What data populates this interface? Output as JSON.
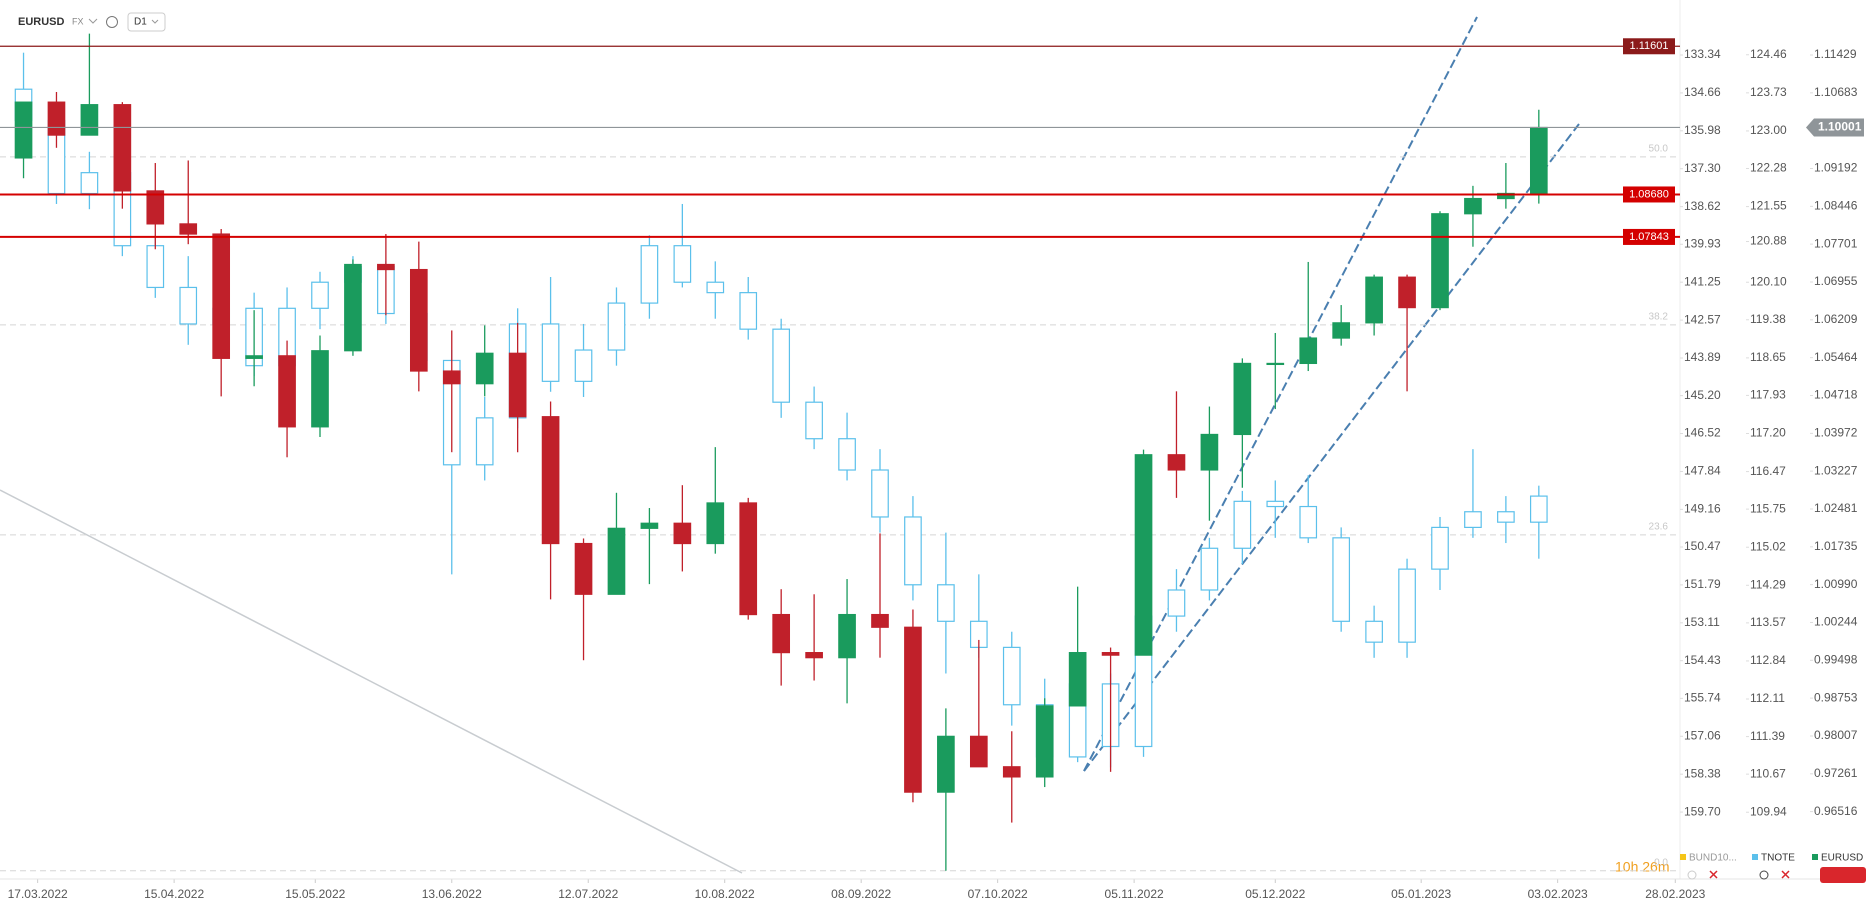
{
  "chart_data": {
    "type": "candlestick",
    "header": {
      "symbol": "EURUSD",
      "market": "FX",
      "interval": "D1"
    },
    "timer": "10h 26m",
    "dates": [
      "2022-03-14",
      "2022-03-21",
      "2022-03-28",
      "2022-04-04",
      "2022-04-11",
      "2022-04-18",
      "2022-04-25",
      "2022-05-02",
      "2022-05-09",
      "2022-05-16",
      "2022-05-23",
      "2022-05-30",
      "2022-06-06",
      "2022-06-13",
      "2022-06-20",
      "2022-06-27",
      "2022-07-04",
      "2022-07-11",
      "2022-07-18",
      "2022-07-25",
      "2022-08-01",
      "2022-08-08",
      "2022-08-15",
      "2022-08-22",
      "2022-08-29",
      "2022-09-05",
      "2022-09-12",
      "2022-09-19",
      "2022-09-26",
      "2022-10-03",
      "2022-10-10",
      "2022-10-17",
      "2022-10-24",
      "2022-10-31",
      "2022-11-07",
      "2022-11-14",
      "2022-11-21",
      "2022-11-28",
      "2022-12-05",
      "2022-12-12",
      "2022-12-19",
      "2022-12-26",
      "2023-01-02",
      "2023-01-09",
      "2023-01-16",
      "2023-01-23",
      "2023-01-30"
    ],
    "series": [
      {
        "name": "BUND10...",
        "color": "#f5c518",
        "axis": "y3"
      },
      {
        "name": "TNOTE",
        "color": "#5bc0eb",
        "axis": "y2",
        "open": [
          123.8,
          123.2,
          121.8,
          122.2,
          120.8,
          120.0,
          119.3,
          119.6,
          118.5,
          119.6,
          120.1,
          120.4,
          119.5,
          118.6,
          116.6,
          117.5,
          119.3,
          118.2,
          118.8,
          119.7,
          120.8,
          120.1,
          119.9,
          119.2,
          117.8,
          117.1,
          116.5,
          115.6,
          114.3,
          113.6,
          113.1,
          112.0,
          111.0,
          112.4,
          111.2,
          113.7,
          114.2,
          115.0,
          115.9,
          115.8,
          115.2,
          113.6,
          113.2,
          114.6,
          115.4,
          115.7,
          115.5
        ],
        "high": [
          124.5,
          123.4,
          122.6,
          122.3,
          121.0,
          120.6,
          120.0,
          119.9,
          120.0,
          120.3,
          120.6,
          120.5,
          119.8,
          118.8,
          117.9,
          119.6,
          120.2,
          119.3,
          120.0,
          121.0,
          121.6,
          120.5,
          120.2,
          119.4,
          118.1,
          117.6,
          116.9,
          116.0,
          115.3,
          114.5,
          113.4,
          112.5,
          112.8,
          112.6,
          114.0,
          114.6,
          115.2,
          116.1,
          116.3,
          116.4,
          115.4,
          113.9,
          114.8,
          115.6,
          116.9,
          116.0,
          116.2
        ],
        "low": [
          122.9,
          121.6,
          121.5,
          120.6,
          119.8,
          118.9,
          118.9,
          118.3,
          118.4,
          119.2,
          119.9,
          119.3,
          118.4,
          114.5,
          116.3,
          117.3,
          118.0,
          117.9,
          118.5,
          119.4,
          120.0,
          119.4,
          119.0,
          117.5,
          116.9,
          116.3,
          115.3,
          114.0,
          112.6,
          112.9,
          111.6,
          110.6,
          110.9,
          110.8,
          111.0,
          113.4,
          114.0,
          114.7,
          115.2,
          115.1,
          113.4,
          112.9,
          112.9,
          114.2,
          115.2,
          115.1,
          114.8
        ],
        "close": [
          123.2,
          121.8,
          122.2,
          120.8,
          120.0,
          119.3,
          119.6,
          118.5,
          119.6,
          120.1,
          120.4,
          119.5,
          118.6,
          116.6,
          117.5,
          119.3,
          118.2,
          118.8,
          119.7,
          120.8,
          120.1,
          119.9,
          119.2,
          117.8,
          117.1,
          116.5,
          115.6,
          114.3,
          113.6,
          113.1,
          112.0,
          111.0,
          112.4,
          111.2,
          113.7,
          114.2,
          115.0,
          115.9,
          115.8,
          115.2,
          113.6,
          113.2,
          114.6,
          115.4,
          115.7,
          115.5,
          116.0
        ]
      },
      {
        "name": "EURUSD",
        "color": "#1a9b5d",
        "down_color": "#c0202a",
        "axis": "y",
        "open": [
          1.094,
          1.105,
          1.0985,
          1.1045,
          1.0875,
          1.081,
          1.079,
          1.0545,
          1.055,
          1.041,
          1.056,
          1.073,
          1.072,
          1.052,
          1.0495,
          1.0555,
          1.043,
          1.018,
          1.008,
          1.021,
          1.022,
          1.018,
          1.026,
          1.004,
          0.9965,
          0.9955,
          1.004,
          1.0015,
          0.969,
          0.98,
          0.974,
          0.972,
          0.986,
          0.9965,
          0.996,
          1.0355,
          1.0325,
          1.0395,
          1.0535,
          1.0535,
          1.0585,
          1.0615,
          1.0705,
          1.0645,
          1.083,
          1.086,
          1.087
        ],
        "high": [
          1.105,
          1.107,
          1.1185,
          1.105,
          1.093,
          1.0935,
          1.08,
          1.064,
          1.058,
          1.059,
          1.074,
          1.079,
          1.0775,
          1.06,
          1.061,
          1.0615,
          1.046,
          1.019,
          1.028,
          1.025,
          1.0295,
          1.037,
          1.027,
          1.009,
          1.008,
          1.011,
          1.02,
          1.005,
          0.9855,
          0.999,
          0.981,
          0.9875,
          1.0095,
          0.9975,
          1.0365,
          1.048,
          1.045,
          1.0545,
          1.0595,
          1.0735,
          1.065,
          1.071,
          1.071,
          1.0835,
          1.0885,
          1.093,
          1.1035
        ],
        "low": [
          1.09,
          1.096,
          1.099,
          1.084,
          1.076,
          1.077,
          1.047,
          1.049,
          1.035,
          1.039,
          1.055,
          1.063,
          1.048,
          1.036,
          1.047,
          1.036,
          1.007,
          0.995,
          1.008,
          1.01,
          1.0125,
          1.016,
          1.003,
          0.99,
          0.991,
          0.9865,
          0.9955,
          0.967,
          0.9535,
          0.974,
          0.963,
          0.97,
          0.986,
          0.973,
          0.996,
          1.027,
          1.0225,
          1.029,
          1.0445,
          1.052,
          1.057,
          1.059,
          1.048,
          1.064,
          1.0765,
          1.084,
          1.085
        ],
        "close": [
          1.105,
          1.0985,
          1.1045,
          1.0875,
          1.081,
          1.079,
          1.0545,
          1.055,
          1.041,
          1.056,
          1.073,
          1.072,
          1.052,
          1.0495,
          1.0555,
          1.043,
          1.018,
          1.008,
          1.021,
          1.022,
          1.018,
          1.026,
          1.004,
          0.9965,
          0.9955,
          1.004,
          1.0015,
          0.969,
          0.98,
          0.974,
          0.972,
          0.986,
          0.9965,
          0.996,
          1.0355,
          1.0325,
          1.0395,
          1.0535,
          1.0535,
          1.0585,
          1.0615,
          1.0705,
          1.0645,
          1.083,
          1.086,
          1.087,
          1.1
        ]
      }
    ],
    "xlim": [
      "2022-03-09",
      "2023-03-01"
    ],
    "xticks": [
      {
        "value": "2022-03-17",
        "label": "17.03.2022"
      },
      {
        "value": "2022-04-15",
        "label": "15.04.2022"
      },
      {
        "value": "2022-05-15",
        "label": "15.05.2022"
      },
      {
        "value": "2022-06-13",
        "label": "13.06.2022"
      },
      {
        "value": "2022-07-12",
        "label": "12.07.2022"
      },
      {
        "value": "2022-08-10",
        "label": "10.08.2022"
      },
      {
        "value": "2022-09-08",
        "label": "08.09.2022"
      },
      {
        "value": "2022-10-07",
        "label": "07.10.2022"
      },
      {
        "value": "2022-11-05",
        "label": "05.11.2022"
      },
      {
        "value": "2022-12-05",
        "label": "05.12.2022"
      },
      {
        "value": "2023-01-05",
        "label": "05.01.2023"
      },
      {
        "value": "2023-02-03",
        "label": "03.02.2023"
      },
      {
        "value": "2023-02-28",
        "label": "28.02.2023"
      }
    ],
    "ylim": [
      0.95188,
      1.12513
    ],
    "yticks": [
      1.11429,
      1.10683,
      1.09192,
      1.08446,
      1.07701,
      1.06955,
      1.06209,
      1.05464,
      1.04718,
      1.03972,
      1.03227,
      1.02481,
      1.01735,
      {
        "value": 1.0099,
        "label": "1.00990"
      },
      1.00244,
      0.99498,
      0.98753,
      0.98007,
      0.97261,
      0.96516
    ],
    "y2lim": [
      108.66,
      125.51
    ],
    "y2ticks": [
      124.46,
      123.73,
      {
        "value": 123,
        "label": "123.00"
      },
      122.28,
      121.55,
      120.88,
      {
        "value": 120.1,
        "label": "120.10"
      },
      119.38,
      118.65,
      117.93,
      {
        "value": 117.2,
        "label": "117.20"
      },
      116.47,
      115.75,
      115.02,
      114.29,
      113.57,
      112.84,
      112.11,
      111.39,
      110.67,
      109.94
    ],
    "y3lim": [
      162.03,
      131.425
    ],
    "y3ticks": [
      133.34,
      134.66,
      135.98,
      {
        "value": 137.3,
        "label": "137.30"
      },
      138.62,
      139.93,
      141.25,
      142.57,
      143.89,
      {
        "value": 145.2,
        "label": "145.20"
      },
      146.52,
      147.84,
      149.16,
      150.47,
      151.79,
      153.11,
      154.43,
      155.74,
      157.06,
      158.38,
      {
        "value": 159.7,
        "label": "159.70"
      }
    ],
    "levels": [
      {
        "price": 1.11601,
        "color": "#8b1a1a"
      },
      {
        "price": {
          "value": 1.0868,
          "label": "1.08680"
        },
        "color": "#d40000"
      },
      {
        "price": 1.07843,
        "color": "#d40000"
      }
    ],
    "current": {
      "price": 1.10001,
      "color": "#8f9599"
    },
    "fib": [
      {
        "level": {
          "value": 50,
          "label": "50.0"
        },
        "price": 1.0942
      },
      {
        "level": 38.2,
        "price": 1.0611
      },
      {
        "level": 23.6,
        "price": 1.0197
      },
      {
        "level": {
          "value": 0,
          "label": "0.0"
        },
        "price": 0.9535
      }
    ]
  }
}
